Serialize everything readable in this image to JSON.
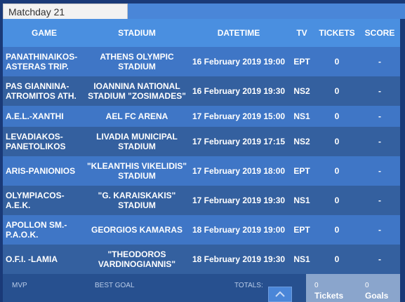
{
  "tab": {
    "label": "Matchday 21"
  },
  "columns": {
    "game": "GAME",
    "stadium": "STADIUM",
    "datetime": "DATETIME",
    "tv": "TV",
    "tickets": "TICKETS",
    "score": "SCORE"
  },
  "matches": [
    {
      "game": "PANATHINAIKOS-ASTERAS TRIP.",
      "stadium": "ATHENS OLYMPIC STADIUM",
      "datetime": "16 February 2019 19:00",
      "tv": "EPT",
      "tickets": "0",
      "score": "-"
    },
    {
      "game": "PAS GIANNINA-ATROMITOS ATH.",
      "stadium": "IOANNINA NATIONAL STADIUM \"ZOSIMADES\"",
      "datetime": "16 February 2019 19:30",
      "tv": "NS2",
      "tickets": "0",
      "score": "-"
    },
    {
      "game": "A.E.L.-XANTHI",
      "stadium": "AEL FC ARENA",
      "datetime": "17 February 2019 15:00",
      "tv": "NS1",
      "tickets": "0",
      "score": "-"
    },
    {
      "game": "LEVADIAKOS-PANETOLIKOS",
      "stadium": "LIVADIA MUNICIPAL STADIUM",
      "datetime": "17 February 2019 17:15",
      "tv": "NS2",
      "tickets": "0",
      "score": "-"
    },
    {
      "game": "ARIS-PANIONIOS",
      "stadium": "\"KLEANTHIS VIKELIDIS\" STADIUM",
      "datetime": "17 February 2019 18:00",
      "tv": "EPT",
      "tickets": "0",
      "score": "-"
    },
    {
      "game": "OLYMPIACOS-A.E.K.",
      "stadium": "\"G. KARAISKAKIS\" STADIUM",
      "datetime": "17 February 2019 19:30",
      "tv": "NS1",
      "tickets": "0",
      "score": "-"
    },
    {
      "game": "APOLLON SM.-P.A.O.K.",
      "stadium": "GEORGIOS KAMARAS",
      "datetime": "18 February 2019 19:00",
      "tv": "EPT",
      "tickets": "0",
      "score": "-"
    },
    {
      "game": "O.F.I. -LAMIA",
      "stadium": "\"THEODOROS VARDINOGIANNIS\"",
      "datetime": "18 February 2019 19:30",
      "tv": "NS1",
      "tickets": "0",
      "score": "-"
    }
  ],
  "footer": {
    "mvp": "MVP",
    "best_goal": "BEST GOAL",
    "totals": "TOTALS:",
    "tickets_count": "0",
    "tickets_label": "Tickets",
    "goals_count": "0",
    "goals_label": "Goals"
  },
  "icons": {
    "collapse": "chevron-up-icon"
  },
  "colors": {
    "header_blue": "#4a8fe0",
    "row_light": "#3f76c6",
    "row_dark": "#34609f",
    "frame": "#1a3a78"
  }
}
